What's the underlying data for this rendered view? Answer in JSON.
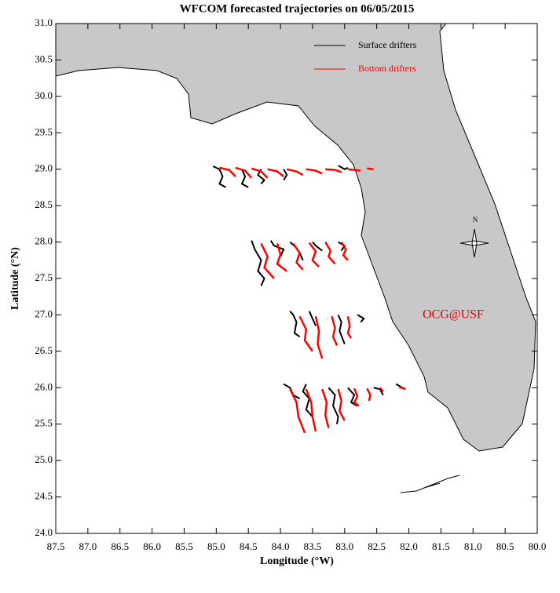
{
  "chart_data": {
    "type": "map",
    "title": "WFCOM forecasted trajectories on 06/05/2015",
    "x_label": "Longitude (°W)",
    "y_label": "Latitude (°N)",
    "annotation": "OCG@USF",
    "compass_label": "N",
    "xlim": [
      87.5,
      80.0
    ],
    "ylim": [
      24.0,
      31.0
    ],
    "xticks": [
      87.5,
      {
        "value": 87,
        "label": "87.0"
      },
      86.5,
      {
        "value": 86,
        "label": "86.0"
      },
      85.5,
      {
        "value": 85,
        "label": "85.0"
      },
      84.5,
      {
        "value": 84,
        "label": "84.0"
      },
      83.5,
      {
        "value": 83,
        "label": "83.0"
      },
      82.5,
      {
        "value": 82,
        "label": "82.0"
      },
      81.5,
      {
        "value": 81,
        "label": "81.0"
      },
      80.5,
      {
        "value": 80,
        "label": "80.0"
      }
    ],
    "yticks": [
      {
        "value": 24,
        "label": "24.0"
      },
      24.5,
      {
        "value": 25,
        "label": "25.0"
      },
      25.5,
      {
        "value": 26,
        "label": "26.0"
      },
      26.5,
      {
        "value": 27,
        "label": "27.0"
      },
      27.5,
      {
        "value": 28,
        "label": "28.0"
      },
      28.5,
      {
        "value": 29,
        "label": "29.0"
      },
      29.5,
      {
        "value": 30,
        "label": "30.0"
      },
      30.5,
      {
        "value": 31,
        "label": "31.0"
      }
    ],
    "series": [
      {
        "name": "Surface drifters",
        "color": "black",
        "tracks": [
          {
            "x": [
              85.05,
              84.95,
              84.9,
              84.95,
              84.85
            ],
            "y": [
              29.04,
              29.0,
              28.9,
              28.8,
              28.75
            ]
          },
          {
            "x": [
              84.6,
              84.55,
              84.6,
              84.5
            ],
            "y": [
              29.0,
              28.9,
              28.8,
              28.75
            ]
          },
          {
            "x": [
              84.3,
              84.35,
              84.25,
              84.3
            ],
            "y": [
              29.0,
              28.92,
              28.85,
              28.8
            ]
          },
          {
            "x": [
              83.95,
              83.9,
              83.95
            ],
            "y": [
              29.0,
              28.92,
              28.85
            ]
          },
          {
            "x": [
              83.1,
              83.0,
              82.95
            ],
            "y": [
              29.05,
              29.0,
              29.02
            ]
          },
          {
            "x": [
              84.45,
              84.4,
              84.3,
              84.35,
              84.25,
              84.3
            ],
            "y": [
              28.02,
              27.9,
              27.75,
              27.6,
              27.5,
              27.4
            ]
          },
          {
            "x": [
              84.15,
              84.1,
              83.95,
              84.0
            ],
            "y": [
              28.02,
              27.95,
              27.9,
              27.8
            ]
          },
          {
            "x": [
              83.85,
              83.75,
              83.7,
              83.65
            ],
            "y": [
              28.0,
              27.92,
              27.85,
              27.75
            ]
          },
          {
            "x": [
              83.5,
              83.45,
              83.35
            ],
            "y": [
              28.0,
              27.95,
              27.88
            ]
          },
          {
            "x": [
              83.1,
              83.0,
              83.05
            ],
            "y": [
              28.0,
              27.95,
              27.88
            ]
          },
          {
            "x": [
              83.85,
              83.8,
              83.75,
              83.78,
              83.7
            ],
            "y": [
              27.05,
              27.0,
              26.9,
              26.75,
              26.7
            ]
          },
          {
            "x": [
              83.55,
              83.5,
              83.45
            ],
            "y": [
              27.05,
              26.95,
              26.85
            ]
          },
          {
            "x": [
              83.1,
              83.05,
              83.08,
              83.0
            ],
            "y": [
              27.0,
              26.9,
              26.78,
              26.6
            ]
          },
          {
            "x": [
              82.8,
              82.7,
              82.75
            ],
            "y": [
              27.0,
              26.95,
              26.9
            ]
          },
          {
            "x": [
              83.95,
              83.85,
              83.8,
              83.7
            ],
            "y": [
              26.05,
              26.0,
              25.9,
              25.85
            ]
          },
          {
            "x": [
              83.6,
              83.65,
              83.55,
              83.6,
              83.5
            ],
            "y": [
              26.05,
              25.95,
              25.85,
              25.7,
              25.6
            ]
          },
          {
            "x": [
              83.25,
              83.15,
              83.18,
              83.1,
              83.12
            ],
            "y": [
              26.0,
              25.9,
              25.75,
              25.6,
              25.5
            ]
          },
          {
            "x": [
              82.95,
              82.85,
              82.9,
              82.8
            ],
            "y": [
              26.0,
              25.9,
              25.8,
              25.75
            ]
          },
          {
            "x": [
              82.55,
              82.45,
              82.4
            ],
            "y": [
              26.0,
              25.98,
              25.9
            ]
          },
          {
            "x": [
              82.2,
              82.1,
              82.05
            ],
            "y": [
              26.05,
              26.0,
              25.98
            ]
          }
        ]
      },
      {
        "name": "Bottom drifters",
        "color": "red",
        "tracks": [
          {
            "x": [
              84.95,
              84.8,
              84.7
            ],
            "y": [
              29.02,
              28.99,
              28.9
            ]
          },
          {
            "x": [
              84.7,
              84.55,
              84.45
            ],
            "y": [
              29.02,
              28.98,
              28.88
            ]
          },
          {
            "x": [
              84.45,
              84.3,
              84.2
            ],
            "y": [
              29.01,
              28.97,
              28.88
            ]
          },
          {
            "x": [
              84.2,
              84.05,
              83.95
            ],
            "y": [
              29.0,
              28.97,
              28.9
            ]
          },
          {
            "x": [
              83.9,
              83.75,
              83.65
            ],
            "y": [
              29.0,
              28.97,
              28.92
            ]
          },
          {
            "x": [
              83.6,
              83.45,
              83.35
            ],
            "y": [
              29.0,
              28.98,
              28.94
            ]
          },
          {
            "x": [
              83.3,
              83.15,
              83.05
            ],
            "y": [
              29.0,
              28.99,
              28.96
            ]
          },
          {
            "x": [
              82.95,
              82.85,
              82.75
            ],
            "y": [
              29.0,
              28.99,
              28.98
            ]
          },
          {
            "x": [
              82.65,
              82.55
            ],
            "y": [
              29.01,
              29.0
            ]
          },
          {
            "x": [
              84.3,
              84.2,
              84.25,
              84.1
            ],
            "y": [
              27.98,
              27.8,
              27.65,
              27.5
            ]
          },
          {
            "x": [
              84.05,
              84.0,
              84.05,
              83.9
            ],
            "y": [
              27.98,
              27.83,
              27.7,
              27.6
            ]
          },
          {
            "x": [
              83.8,
              83.7,
              83.75,
              83.65
            ],
            "y": [
              27.98,
              27.85,
              27.72,
              27.62
            ]
          },
          {
            "x": [
              83.55,
              83.45,
              83.5,
              83.4
            ],
            "y": [
              27.99,
              27.87,
              27.75,
              27.66
            ]
          },
          {
            "x": [
              83.3,
              83.22,
              83.25,
              83.15
            ],
            "y": [
              28.0,
              27.88,
              27.8,
              27.7
            ]
          },
          {
            "x": [
              83.05,
              82.98,
              83.02,
              82.95
            ],
            "y": [
              28.0,
              27.9,
              27.82,
              27.75
            ]
          },
          {
            "x": [
              83.7,
              83.6,
              83.62,
              83.5
            ],
            "y": [
              26.98,
              26.8,
              26.65,
              26.5
            ]
          },
          {
            "x": [
              83.45,
              83.4,
              83.42,
              83.35
            ],
            "y": [
              26.98,
              26.78,
              26.6,
              26.4
            ]
          },
          {
            "x": [
              83.2,
              83.15,
              83.18,
              83.12
            ],
            "y": [
              26.98,
              26.82,
              26.7,
              26.58
            ]
          },
          {
            "x": [
              82.95,
              82.92,
              82.95,
              82.9
            ],
            "y": [
              26.98,
              26.85,
              26.75,
              26.68
            ]
          },
          {
            "x": [
              83.85,
              83.75,
              83.72,
              83.62
            ],
            "y": [
              25.98,
              25.8,
              25.6,
              25.38
            ]
          },
          {
            "x": [
              83.6,
              83.52,
              83.5,
              83.45
            ],
            "y": [
              25.98,
              25.8,
              25.6,
              25.4
            ]
          },
          {
            "x": [
              83.35,
              83.28,
              83.3,
              83.25
            ],
            "y": [
              25.98,
              25.8,
              25.62,
              25.45
            ]
          },
          {
            "x": [
              83.1,
              83.05,
              83.08,
              83.0
            ],
            "y": [
              25.98,
              25.82,
              25.68,
              25.55
            ]
          },
          {
            "x": [
              82.85,
              82.8,
              82.85,
              82.78
            ],
            "y": [
              25.99,
              25.88,
              25.8,
              25.75
            ]
          },
          {
            "x": [
              82.65,
              82.6,
              82.62
            ],
            "y": [
              25.99,
              25.9,
              25.82
            ]
          },
          {
            "x": [
              82.45,
              82.4
            ],
            "y": [
              26.0,
              25.95
            ]
          },
          {
            "x": [
              82.15,
              82.05
            ],
            "y": [
              26.01,
              25.98
            ]
          }
        ]
      }
    ]
  }
}
